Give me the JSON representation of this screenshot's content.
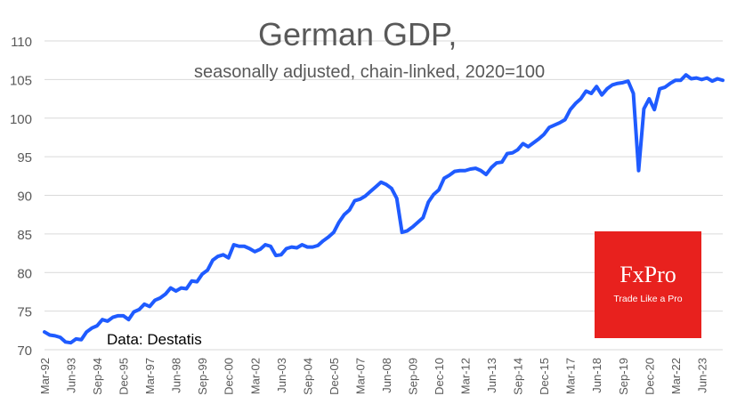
{
  "chart_data": {
    "type": "line",
    "title": "German GDP,",
    "subtitle": "seasonally adjusted, chain-linked, 2020=100",
    "source_note": "Data: Destatis",
    "xlabel": "",
    "ylabel": "",
    "ylim": [
      70,
      110
    ],
    "yticks": [
      70,
      75,
      80,
      85,
      90,
      95,
      100,
      105,
      110
    ],
    "grid": "horizontal",
    "line_color": "#1f5bff",
    "x_tick_labels": [
      "Mar-92",
      "Jun-93",
      "Sep-94",
      "Dec-95",
      "Mar-97",
      "Jun-98",
      "Sep-99",
      "Dec-00",
      "Mar-02",
      "Jun-03",
      "Sep-04",
      "Dec-05",
      "Mar-07",
      "Jun-08",
      "Sep-09",
      "Dec-10",
      "Mar-12",
      "Jun-13",
      "Sep-14",
      "Dec-15",
      "Mar-17",
      "Jun-18",
      "Sep-19",
      "Dec-20",
      "Mar-22",
      "Jun-23"
    ],
    "series": [
      {
        "name": "",
        "values": [
          72.3,
          71.9,
          71.8,
          71.6,
          71.0,
          70.9,
          71.4,
          71.3,
          72.3,
          72.8,
          73.1,
          73.9,
          73.7,
          74.2,
          74.4,
          74.4,
          73.9,
          74.9,
          75.2,
          75.9,
          75.6,
          76.4,
          76.7,
          77.2,
          78.0,
          77.6,
          78.0,
          77.9,
          78.9,
          78.8,
          79.8,
          80.3,
          81.6,
          82.1,
          82.3,
          81.9,
          83.6,
          83.4,
          83.4,
          83.1,
          82.7,
          83.0,
          83.6,
          83.4,
          82.2,
          82.3,
          83.1,
          83.3,
          83.2,
          83.6,
          83.3,
          83.3,
          83.5,
          84.1,
          84.6,
          85.2,
          86.5,
          87.5,
          88.1,
          89.3,
          89.5,
          89.9,
          90.5,
          91.1,
          91.7,
          91.4,
          90.9,
          89.6,
          85.2,
          85.4,
          85.9,
          86.5,
          87.1,
          89.1,
          90.1,
          90.7,
          92.2,
          92.6,
          93.1,
          93.2,
          93.2,
          93.4,
          93.5,
          93.2,
          92.7,
          93.6,
          94.2,
          94.3,
          95.4,
          95.5,
          95.9,
          96.7,
          96.3,
          96.8,
          97.3,
          97.9,
          98.8,
          99.1,
          99.4,
          99.8,
          101.1,
          101.9,
          102.5,
          103.5,
          103.2,
          104.1,
          103.0,
          103.8,
          104.3,
          104.5,
          104.6,
          104.8,
          103.2,
          93.2,
          101.2,
          102.5,
          101.1,
          103.8,
          104.0,
          104.5,
          104.9,
          104.9,
          105.6,
          105.1,
          105.2,
          105.0,
          105.2,
          104.8,
          105.1,
          104.9
        ]
      }
    ]
  },
  "logo": {
    "brand_text": "FxPro",
    "tagline": "Trade Like a Pro",
    "color": "#e8211e"
  }
}
